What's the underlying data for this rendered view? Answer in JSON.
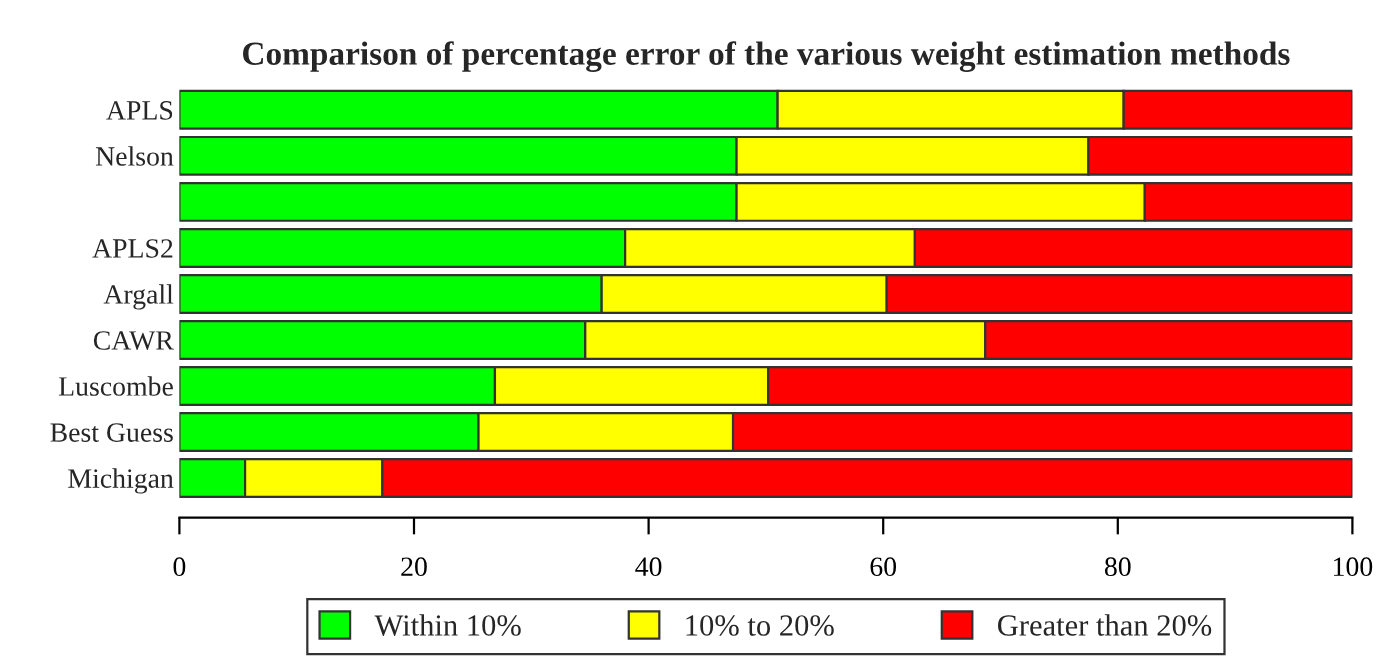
{
  "chart_data": {
    "type": "bar",
    "orientation": "horizontal",
    "stacked": true,
    "title": "Comparison of percentage error of the various weight estimation methods",
    "categories": [
      "APLS",
      "Nelson",
      null,
      "APLS2",
      "Argall",
      "CAWR",
      "Luscombe",
      "Best Guess",
      "Michigan"
    ],
    "series": [
      {
        "name": "Within 10%",
        "color": "#00ff00",
        "values": [
          51,
          47.5,
          47.5,
          38,
          36,
          34.6,
          26.9,
          25.5,
          5.6
        ]
      },
      {
        "name": "10% to 20%",
        "color": "#ffff00",
        "values": [
          29.5,
          30,
          34.8,
          24.7,
          24.3,
          34.1,
          23.3,
          21.7,
          11.7
        ]
      },
      {
        "name": "Greater than 20%",
        "color": "#ff0000",
        "values": [
          19.5,
          22.5,
          17.7,
          37.3,
          39.7,
          31.3,
          49.8,
          52.8,
          82.7
        ]
      }
    ],
    "xlim": [
      0,
      100
    ],
    "xticks": [
      0,
      20,
      40,
      60,
      80,
      100
    ],
    "grid": false,
    "legend": "bottom"
  }
}
